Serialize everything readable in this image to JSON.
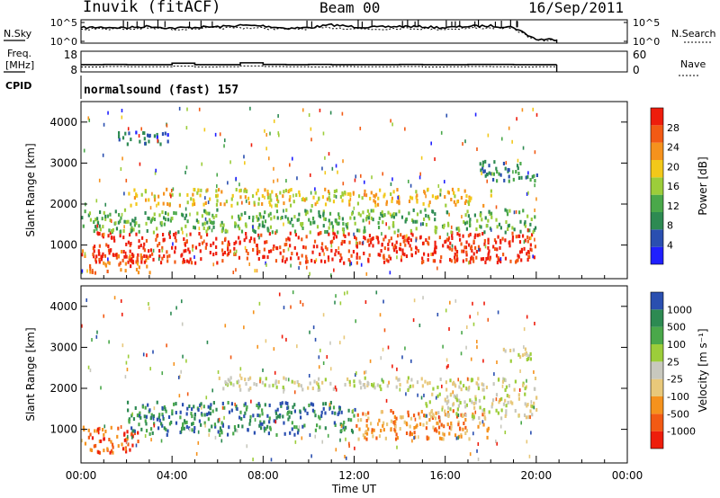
{
  "header": {
    "station": "Inuvik (fitACF)",
    "beam": "Beam 00",
    "date": "16/Sep/2011"
  },
  "side_labels": {
    "nsky": "N.Sky",
    "freq_line1": "Freq.",
    "freq_line2": "[MHz]",
    "cpid": "CPID",
    "nsearch": "N.Search",
    "nave": "Nave"
  },
  "cpid_value": "normalsound (fast) 157",
  "colors": {
    "power_scale": [
      "#1f1fff",
      "#2a4fb0",
      "#2d8a52",
      "#4aa84a",
      "#9ccd3a",
      "#f2c81a",
      "#f5921d",
      "#f25a14",
      "#ee1d0c"
    ],
    "velocity_scale": [
      "#ee1d0c",
      "#f25a14",
      "#f5921d",
      "#e8c87a",
      "#c8c8be",
      "#9ccd3a",
      "#4aa84a",
      "#2d8a52",
      "#2a4fb0"
    ]
  },
  "chart_data": [
    {
      "type": "line",
      "name": "nsky-nsearch",
      "ytick_labels_left": [
        "10^5",
        "10^0"
      ],
      "ytick_labels_right": [
        "10^5",
        "10^0"
      ],
      "x": [
        0,
        1,
        2,
        3,
        4,
        5,
        6,
        7,
        8,
        9,
        10,
        11,
        12,
        13,
        14,
        15,
        16,
        17,
        18,
        19,
        20,
        20.9
      ],
      "series": [
        {
          "values": [
            3.3,
            3.4,
            3.3,
            3.6,
            3.2,
            3.4,
            3.5,
            3.8,
            3.7,
            3.2,
            3.3,
            3.9,
            3.5,
            3.4,
            3.6,
            3.5,
            3.3,
            3.6,
            3.7,
            3.4,
            0.8,
            0.8
          ]
        },
        {
          "values": [
            3.0,
            3.1,
            3.0,
            3.2,
            3.0,
            3.1,
            3.2,
            3.3,
            3.2,
            3.0,
            3.1,
            3.3,
            3.1,
            3.0,
            3.2,
            3.1,
            3.0,
            3.2,
            3.3,
            3.1,
            0.6,
            0.6
          ]
        }
      ]
    },
    {
      "type": "line",
      "name": "freq-nave",
      "yticks_left": [
        8,
        18
      ],
      "yticks_right": [
        0,
        60
      ],
      "x": [
        0,
        1,
        2,
        3,
        4,
        5,
        6,
        7,
        8,
        9,
        10,
        11,
        12,
        13,
        14,
        15,
        16,
        17,
        18,
        19,
        20,
        20.9
      ],
      "series": [
        {
          "values": [
            11.5,
            11.6,
            11.5,
            11.5,
            12.2,
            11.5,
            11.5,
            12.4,
            11.6,
            11.5,
            11.6,
            11.5,
            11.5,
            11.5,
            11.6,
            11.5,
            11.5,
            11.6,
            11.6,
            11.5,
            11.5,
            11.5
          ]
        },
        {
          "values": [
            10.4,
            10.6,
            10.5,
            10.5,
            10.8,
            10.4,
            10.5,
            10.9,
            10.6,
            10.5,
            10.4,
            10.6,
            10.5,
            10.5,
            10.6,
            10.4,
            10.5,
            10.6,
            10.5,
            10.4,
            10.5,
            10.5
          ]
        }
      ]
    },
    {
      "type": "heatmap",
      "name": "power",
      "ylabel": "Slant Range [km]",
      "yticks": [
        1000,
        2000,
        3000,
        4000
      ],
      "ylim": [
        180,
        4500
      ],
      "colorbar_label": "Power [dB]",
      "colorbar_ticks": [
        "4",
        "8",
        "12",
        "16",
        "20",
        "24",
        "28"
      ],
      "bands": [
        {
          "range_km": [
            350,
            900
          ],
          "level": 7,
          "hours": [
            0,
            3
          ]
        },
        {
          "range_km": [
            600,
            1350
          ],
          "level": 8,
          "hours": [
            0.5,
            20
          ]
        },
        {
          "range_km": [
            1350,
            1900
          ],
          "level": 3,
          "hours": [
            0,
            20
          ]
        },
        {
          "range_km": [
            2000,
            2400
          ],
          "level": 5,
          "hours": [
            2,
            18
          ]
        },
        {
          "range_km": [
            2600,
            3100
          ],
          "level": 2,
          "hours": [
            17.5,
            20
          ]
        },
        {
          "range_km": [
            3500,
            3800
          ],
          "level": 1,
          "hours": [
            1.5,
            4
          ]
        }
      ]
    },
    {
      "type": "heatmap",
      "name": "velocity",
      "ylabel": "Slant Range [km]",
      "yticks": [
        1000,
        2000,
        3000,
        4000
      ],
      "ylim": [
        180,
        4500
      ],
      "xlabel": "Time UT",
      "xticks": [
        "00:00",
        "04:00",
        "08:00",
        "12:00",
        "16:00",
        "20:00",
        "00:00"
      ],
      "colorbar_label": "Velocity [m s⁻¹]",
      "colorbar_ticks": [
        "-1000",
        "-500",
        "-100",
        "-25",
        "25",
        "100",
        "500",
        "1000"
      ],
      "bands": [
        {
          "range_km": [
            450,
            1100
          ],
          "level": 1,
          "hours": [
            0,
            2.5
          ]
        },
        {
          "range_km": [
            900,
            1700
          ],
          "level": 7,
          "hours": [
            2,
            12
          ]
        },
        {
          "range_km": [
            800,
            1500
          ],
          "level": 2,
          "hours": [
            12,
            18
          ]
        },
        {
          "range_km": [
            1300,
            1900
          ],
          "level": 4,
          "hours": [
            15,
            20
          ]
        },
        {
          "range_km": [
            2000,
            2300
          ],
          "level": 4,
          "hours": [
            6,
            20
          ]
        },
        {
          "range_km": [
            2700,
            3000
          ],
          "level": 4,
          "hours": [
            18.5,
            20
          ]
        }
      ]
    }
  ]
}
